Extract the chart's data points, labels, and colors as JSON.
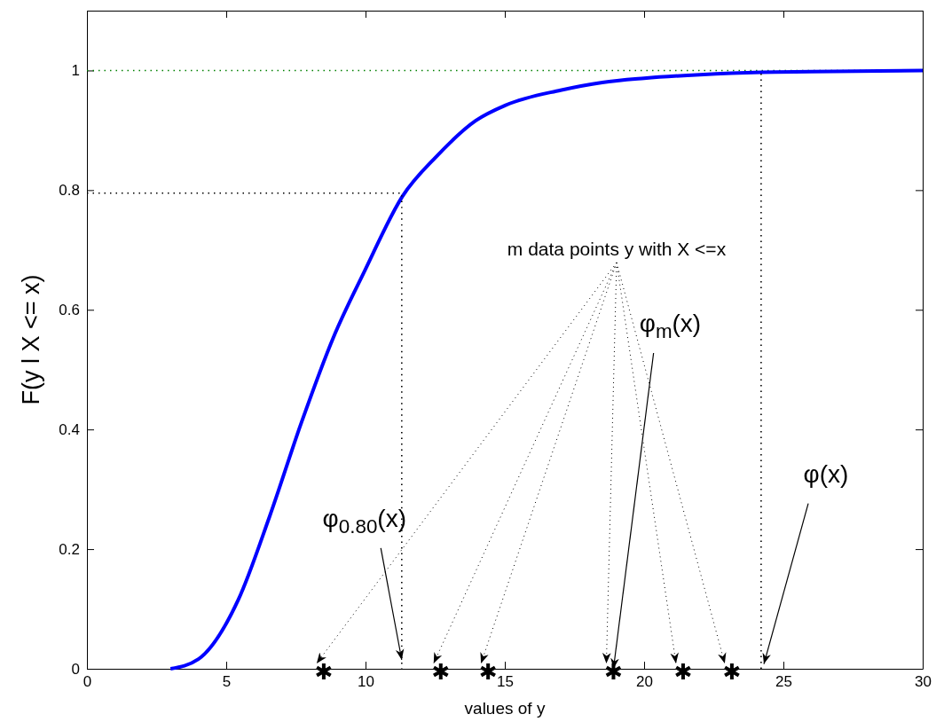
{
  "chart_data": {
    "type": "line",
    "xlabel": "values of y",
    "ylabel": "F(y l X <= x)",
    "xlim": [
      0,
      30
    ],
    "ylim": [
      0,
      1.1
    ],
    "xticks": [
      0,
      5,
      10,
      15,
      20,
      25,
      30
    ],
    "yticks": [
      0,
      0.2,
      0.4,
      0.6,
      0.8,
      1
    ],
    "grid": false,
    "series": [
      {
        "color": "#0000ff",
        "line_style": "solid",
        "marker": "none",
        "x": [
          3,
          4,
          5.43,
          6.56,
          7.71,
          8.84,
          9.97,
          11.33,
          12.54,
          13.95,
          15.03,
          17,
          18.5,
          20,
          22,
          24.2,
          26,
          30
        ],
        "values": [
          0,
          0.016,
          0.115,
          0.255,
          0.413,
          0.553,
          0.665,
          0.79,
          0.856,
          0.916,
          0.942,
          0.967,
          0.98,
          0.987,
          0.993,
          0.997,
          0.998,
          1
        ]
      },
      {
        "type": "line",
        "color": "#000000",
        "line_style": "dotted",
        "marker": "none",
        "x": [
          0,
          11.3,
          11.3
        ],
        "values": [
          0.795,
          0.795,
          0
        ]
      },
      {
        "type": "line",
        "color": "#000000",
        "line_style": "dotted",
        "marker": "none",
        "x": [
          24.2,
          24.2
        ],
        "values": [
          0,
          1
        ]
      },
      {
        "type": "scatter",
        "color": "#000000",
        "marker": "cross",
        "x": [
          8.5,
          12.7,
          14.4,
          18.9,
          21.4,
          23.15
        ],
        "values": [
          0,
          0,
          0,
          0,
          0,
          0
        ]
      }
    ],
    "ref_lines": [
      {
        "axis": "y",
        "value": 1,
        "color": "#008000",
        "line_style": "dotted"
      }
    ],
    "annotations": [
      "m data points y with X <=x",
      {
        "text": "φ$_{0.80}$(x)",
        "x": 11.3,
        "y": 0.015
      },
      {
        "text": "φ$_{m}$(x)",
        "x": 18.9,
        "y": 0
      },
      {
        "text": "φ(x)",
        "x": 24.3,
        "y": 0.008
      }
    ]
  }
}
